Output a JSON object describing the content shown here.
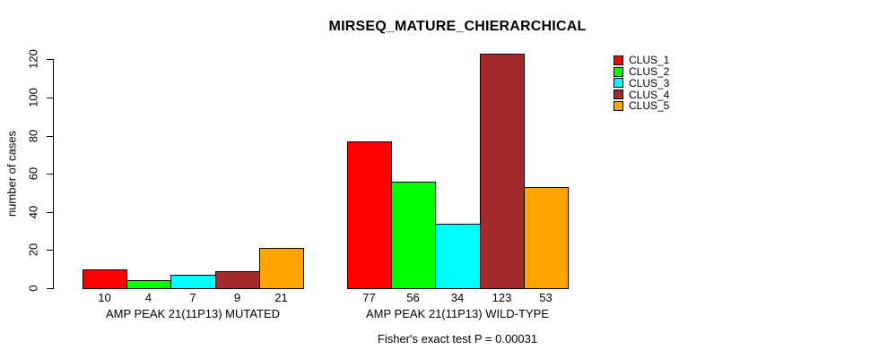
{
  "chart_data": {
    "type": "bar",
    "title": "MIRSEQ_MATURE_CHIERARCHICAL",
    "ylabel": "number of cases",
    "ylim": [
      0,
      123
    ],
    "yticks": [
      0,
      20,
      40,
      60,
      80,
      100,
      120
    ],
    "grid": false,
    "legend_position": "top-right",
    "series": [
      {
        "name": "CLUS_1",
        "color": "#FF0000"
      },
      {
        "name": "CLUS_2",
        "color": "#00FF00"
      },
      {
        "name": "CLUS_3",
        "color": "#00FFFF"
      },
      {
        "name": "CLUS_4",
        "color": "#A52A2A"
      },
      {
        "name": "CLUS_5",
        "color": "#FFA500"
      }
    ],
    "groups": [
      {
        "label": "AMP PEAK 21(11P13) MUTATED",
        "values": [
          10,
          4,
          7,
          9,
          21
        ]
      },
      {
        "label": "AMP PEAK 21(11P13) WILD-TYPE",
        "values": [
          77,
          56,
          34,
          123,
          53
        ]
      }
    ],
    "caption": "Fisher's exact test P = 0.00031"
  }
}
